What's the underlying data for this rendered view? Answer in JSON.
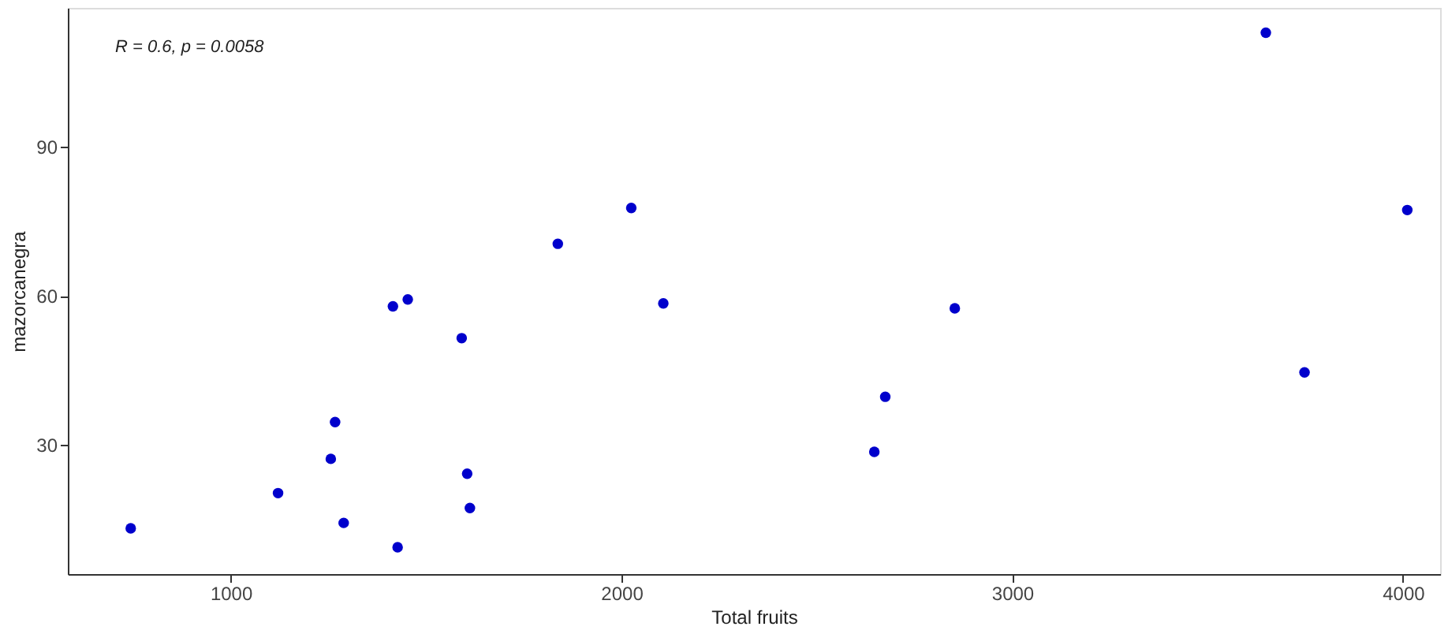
{
  "chart_data": {
    "type": "scatter",
    "xlabel": "Total fruits",
    "ylabel": "mazorcanegra",
    "annotations": [
      "R = 0.6, p = 0.0058"
    ],
    "x": [
      744,
      1121,
      1256,
      1267,
      1289,
      1415,
      1453,
      1427,
      1591,
      1605,
      1612,
      1837,
      2025,
      2107,
      2647,
      2675,
      2853,
      3649,
      3748,
      4011
    ],
    "series": [
      {
        "color": "#0000cc",
        "values": [
          13.2,
          20.3,
          27.2,
          34.6,
          14.3,
          57.9,
          59.3,
          9.4,
          51.5,
          24.2,
          17.3,
          70.5,
          77.7,
          58.5,
          28.6,
          39.7,
          57.5,
          113.0,
          44.6,
          77.3
        ]
      }
    ],
    "xlim": [
      583,
      4095
    ],
    "ylim": [
      4,
      118
    ],
    "xticks": [
      1000,
      2000,
      3000,
      4000
    ],
    "yticks": [
      30,
      60,
      90
    ],
    "grid": false,
    "legend": false,
    "marker": "circle"
  }
}
